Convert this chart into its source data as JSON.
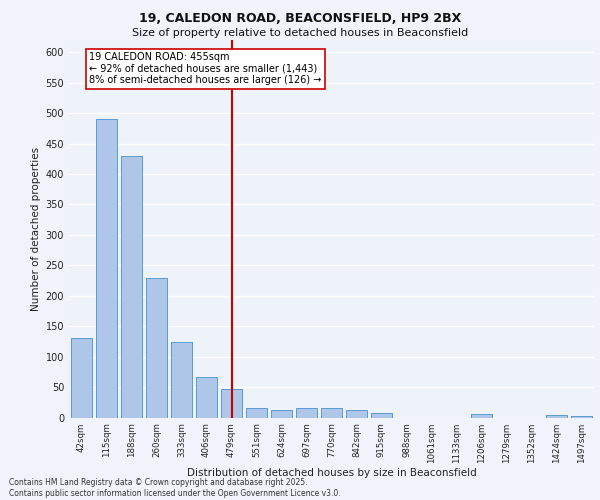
{
  "title1": "19, CALEDON ROAD, BEACONSFIELD, HP9 2BX",
  "title2": "Size of property relative to detached houses in Beaconsfield",
  "xlabel": "Distribution of detached houses by size in Beaconsfield",
  "ylabel": "Number of detached properties",
  "bar_labels": [
    "42sqm",
    "115sqm",
    "188sqm",
    "260sqm",
    "333sqm",
    "406sqm",
    "479sqm",
    "551sqm",
    "624sqm",
    "697sqm",
    "770sqm",
    "842sqm",
    "915sqm",
    "988sqm",
    "1061sqm",
    "1133sqm",
    "1206sqm",
    "1279sqm",
    "1352sqm",
    "1424sqm",
    "1497sqm"
  ],
  "bar_values": [
    130,
    491,
    430,
    229,
    124,
    66,
    46,
    15,
    12,
    16,
    15,
    12,
    8,
    0,
    0,
    0,
    5,
    0,
    0,
    4,
    3
  ],
  "bar_color": "#aec6e8",
  "bar_edgecolor": "#5b9bd5",
  "vline_x": 6,
  "annotation_line1": "19 CALEDON ROAD: 455sqm",
  "annotation_line2": "← 92% of detached houses are smaller (1,443)",
  "annotation_line3": "8% of semi-detached houses are larger (126) →",
  "vline_color": "#cc0000",
  "background_color": "#eef2f9",
  "grid_color": "#ffffff",
  "footer_line1": "Contains HM Land Registry data © Crown copyright and database right 2025.",
  "footer_line2": "Contains public sector information licensed under the Open Government Licence v3.0.",
  "ylim": [
    0,
    620
  ],
  "yticks": [
    0,
    50,
    100,
    150,
    200,
    250,
    300,
    350,
    400,
    450,
    500,
    550,
    600
  ]
}
